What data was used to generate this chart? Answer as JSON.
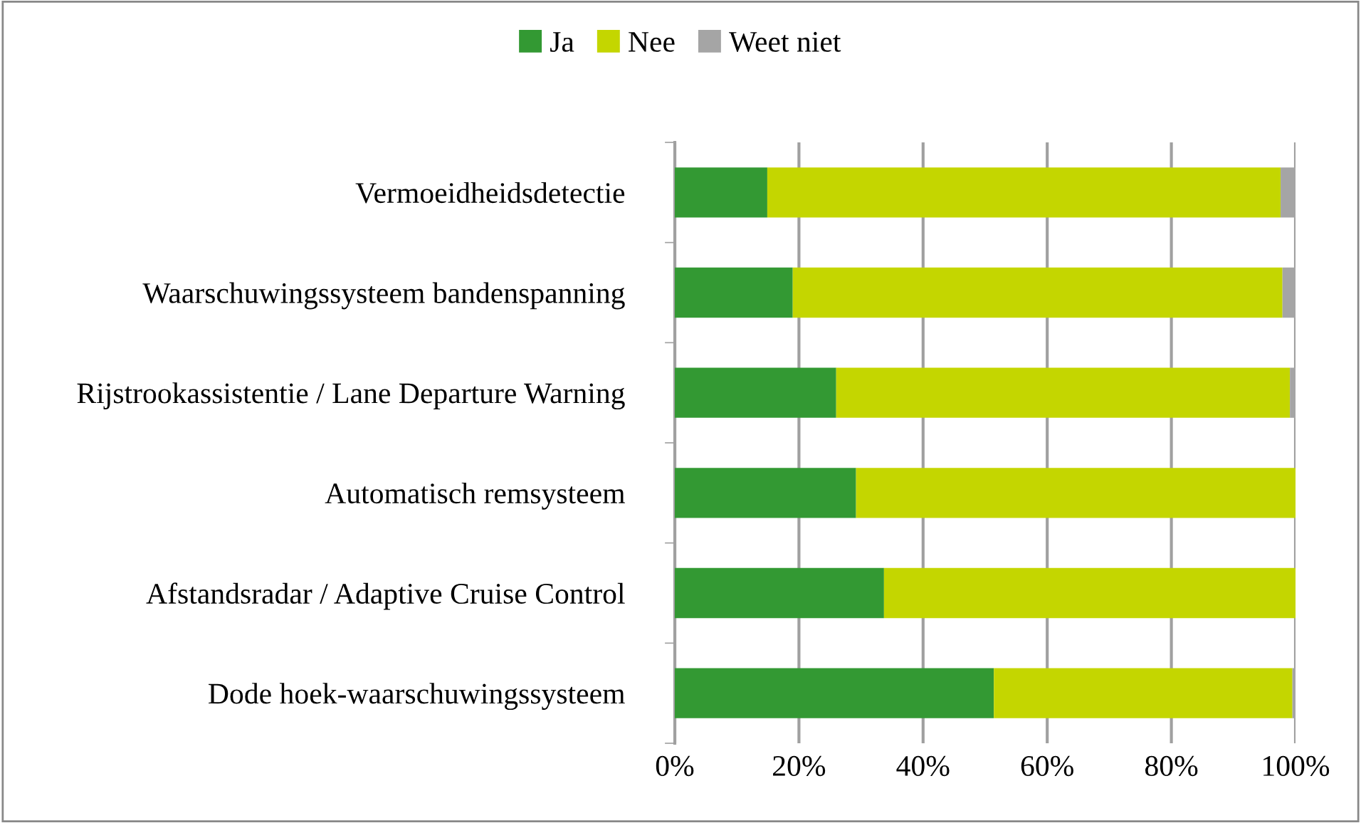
{
  "chart_data": {
    "type": "bar",
    "orientation": "horizontal",
    "stacked": true,
    "categories": [
      "Vermoeidheidsdetectie",
      "Waarschuwingssysteem bandenspanning",
      "Rijstrookassistentie / Lane Departure Warning",
      "Automatisch remsysteem",
      "Afstandsradar / Adaptive Cruise Control",
      "Dode hoek-waarschuwingssysteem"
    ],
    "series": [
      {
        "name": "Ja",
        "color": "#339933",
        "values": [
          14.9,
          19.0,
          26.0,
          29.2,
          33.7,
          51.4
        ]
      },
      {
        "name": "Nee",
        "color": "#c4d600",
        "values": [
          82.7,
          78.9,
          73.1,
          70.8,
          66.3,
          48.1
        ]
      },
      {
        "name": "Weet niet",
        "color": "#a5a5a5",
        "values": [
          2.4,
          2.1,
          0.9,
          0,
          0,
          0.5
        ]
      }
    ],
    "xlim": [
      0,
      100
    ],
    "xticks": [
      {
        "value": 0,
        "label": "0%"
      },
      {
        "value": 20,
        "label": "20%"
      },
      {
        "value": 40,
        "label": "40%"
      },
      {
        "value": 60,
        "label": "60%"
      },
      {
        "value": 80,
        "label": "80%"
      },
      {
        "value": 100,
        "label": "100%"
      }
    ],
    "grid": "x",
    "legend": "top"
  }
}
